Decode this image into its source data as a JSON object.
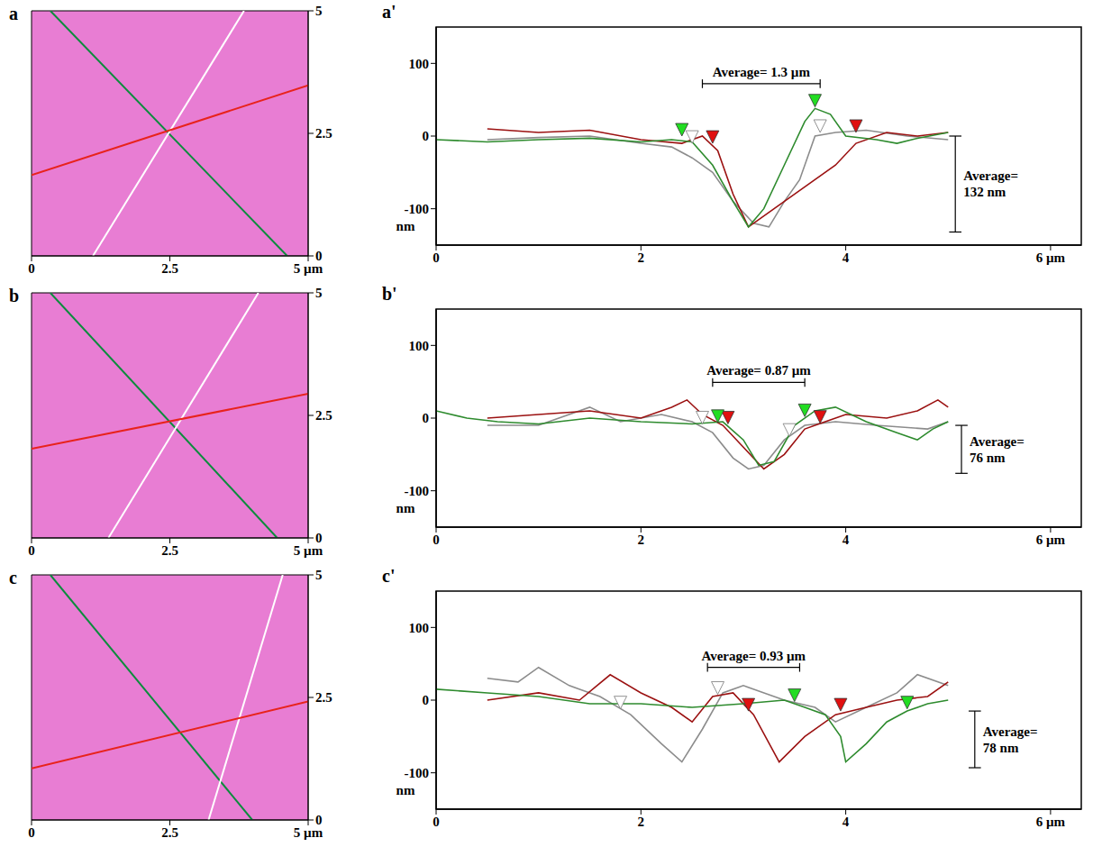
{
  "chart_data": [
    {
      "type": "afm_image",
      "panel": "a",
      "xlim": [
        0,
        5
      ],
      "ylim": [
        0,
        5
      ],
      "xticks": [
        0,
        2.5,
        {
          "value": 5,
          "label": "5 µm"
        }
      ],
      "yticks": [
        0,
        2.5,
        5
      ],
      "series": [
        {
          "color": "#0b8c3c",
          "x": [
            0.34,
            4.62
          ],
          "values": [
            5,
            0
          ]
        },
        {
          "color": "#ffffff",
          "x": [
            1.11,
            3.84
          ],
          "values": [
            0,
            5
          ]
        },
        {
          "color": "#e8231c",
          "x": [
            0,
            5
          ],
          "values": [
            1.65,
            3.48
          ]
        }
      ]
    },
    {
      "type": "line",
      "panel": "a'",
      "xlim": [
        0,
        6.3
      ],
      "ylim": [
        -150,
        150
      ],
      "xticks": [
        0,
        2,
        4,
        {
          "value": 6,
          "label": "6  µm"
        }
      ],
      "yticks": [
        -100,
        0,
        100
      ],
      "y_label": "nm",
      "annotations": [
        {
          "text": "Average= 1.3 µm",
          "x": [
            2.6,
            3.75
          ],
          "y": 72
        },
        {
          "text": "Average= 132 nm",
          "x": 5.07,
          "y": [
            0,
            -132
          ]
        }
      ],
      "series": [
        {
          "color": "#8c8c8c",
          "x": [
            0.5,
            1,
            1.5,
            2,
            2.3,
            2.5,
            2.7,
            2.9,
            3.1,
            3.25,
            3.4,
            3.55,
            3.7,
            3.9,
            4.2,
            4.6,
            5
          ],
          "values": [
            -5,
            -2,
            0,
            -10,
            -15,
            -30,
            -50,
            -90,
            -120,
            -125,
            -90,
            -60,
            0,
            5,
            8,
            0,
            -5
          ],
          "cursors": {
            "x": [
              2.5,
              3.75
            ],
            "y": [
              -10,
              5
            ]
          }
        },
        {
          "color": "#9b1111",
          "x": [
            0.5,
            1,
            1.5,
            2,
            2.4,
            2.6,
            2.75,
            2.9,
            3.05,
            3.3,
            3.6,
            3.9,
            4.1,
            4.4,
            4.7,
            5
          ],
          "values": [
            10,
            5,
            8,
            -5,
            -10,
            0,
            -20,
            -80,
            -125,
            -100,
            -70,
            -40,
            -10,
            5,
            0,
            5
          ],
          "cursors": {
            "x": [
              2.7,
              4.1
            ],
            "y": [
              -10,
              5
            ]
          }
        },
        {
          "color": "#2e8b2e",
          "x": [
            0,
            0.5,
            1,
            1.5,
            2,
            2.3,
            2.5,
            2.7,
            2.9,
            3.05,
            3.2,
            3.4,
            3.6,
            3.7,
            3.85,
            4,
            4.3,
            4.5,
            4.7,
            5
          ],
          "values": [
            -5,
            -8,
            -5,
            -3,
            -8,
            -5,
            -8,
            -40,
            -90,
            -125,
            -100,
            -40,
            20,
            38,
            30,
            0,
            -5,
            -10,
            -3,
            5
          ],
          "cursors": {
            "x": [
              2.4,
              3.7
            ],
            "y": [
              0,
              40
            ]
          }
        }
      ]
    },
    {
      "type": "afm_image",
      "panel": "b",
      "xlim": [
        0,
        5
      ],
      "ylim": [
        0,
        5
      ],
      "xticks": [
        0,
        2.5,
        {
          "value": 5,
          "label": "5 µm"
        }
      ],
      "yticks": [
        0,
        2.5,
        5
      ],
      "series": [
        {
          "color": "#0b8c3c",
          "x": [
            0.34,
            4.44
          ],
          "values": [
            5,
            0
          ]
        },
        {
          "color": "#ffffff",
          "x": [
            1.39,
            4.1
          ],
          "values": [
            0,
            5
          ]
        },
        {
          "color": "#e8231c",
          "x": [
            0,
            5
          ],
          "values": [
            1.82,
            2.94
          ]
        }
      ]
    },
    {
      "type": "line",
      "panel": "b'",
      "xlim": [
        0,
        6.3
      ],
      "ylim": [
        -150,
        150
      ],
      "xticks": [
        0,
        2,
        4,
        {
          "value": 6,
          "label": "6  µm"
        }
      ],
      "yticks": [
        -100,
        0,
        100
      ],
      "y_label": "nm",
      "annotations": [
        {
          "text": "Average= 0.87 µm",
          "x": [
            2.7,
            3.6
          ],
          "y": 49
        },
        {
          "text": "Average= 76 nm",
          "x": 5.13,
          "y": [
            -10,
            -76
          ]
        }
      ],
      "series": [
        {
          "color": "#8c8c8c",
          "x": [
            0.5,
            1,
            1.5,
            1.8,
            2.2,
            2.5,
            2.7,
            2.9,
            3.05,
            3.2,
            3.4,
            3.6,
            3.9,
            4.3,
            4.8,
            5
          ],
          "values": [
            -10,
            -10,
            15,
            -5,
            5,
            -5,
            -20,
            -55,
            -70,
            -65,
            -30,
            -10,
            -5,
            -10,
            -15,
            -5
          ],
          "cursors": {
            "x": [
              2.6,
              3.45
            ],
            "y": [
              -8,
              -25
            ]
          }
        },
        {
          "color": "#9b1111",
          "x": [
            0.5,
            1,
            1.5,
            2,
            2.3,
            2.45,
            2.6,
            2.8,
            3,
            3.2,
            3.4,
            3.6,
            3.8,
            4,
            4.4,
            4.7,
            4.9,
            5
          ],
          "values": [
            0,
            5,
            10,
            0,
            15,
            25,
            5,
            -10,
            -40,
            -70,
            -50,
            -15,
            -5,
            5,
            0,
            10,
            25,
            15
          ],
          "cursors": {
            "x": [
              2.85,
              3.75
            ],
            "y": [
              -8,
              -7
            ]
          }
        },
        {
          "color": "#2e8b2e",
          "x": [
            0,
            0.3,
            0.6,
            1,
            1.5,
            2,
            2.5,
            2.8,
            3,
            3.15,
            3.3,
            3.5,
            3.7,
            3.9,
            4.2,
            4.5,
            4.7,
            4.85,
            5
          ],
          "values": [
            10,
            0,
            -5,
            -8,
            0,
            -5,
            -8,
            -5,
            -30,
            -65,
            -60,
            -10,
            10,
            15,
            -5,
            -20,
            -30,
            -15,
            -5
          ],
          "cursors": {
            "x": [
              2.75,
              3.6
            ],
            "y": [
              -6,
              2
            ]
          }
        }
      ]
    },
    {
      "type": "afm_image",
      "panel": "c",
      "xlim": [
        0,
        5
      ],
      "ylim": [
        0,
        5
      ],
      "xticks": [
        0,
        2.5,
        {
          "value": 5,
          "label": "5 µm"
        }
      ],
      "yticks": [
        0,
        2.5,
        5
      ],
      "series": [
        {
          "color": "#0b8c3c",
          "x": [
            0.34,
            3.99
          ],
          "values": [
            5,
            0
          ]
        },
        {
          "color": "#ffffff",
          "x": [
            3.2,
            4.54
          ],
          "values": [
            0,
            5
          ]
        },
        {
          "color": "#e8231c",
          "x": [
            0,
            5
          ],
          "values": [
            1.05,
            2.42
          ]
        }
      ]
    },
    {
      "type": "line",
      "panel": "c'",
      "xlim": [
        0,
        6.3
      ],
      "ylim": [
        -150,
        150
      ],
      "xticks": [
        0,
        2,
        4,
        {
          "value": 6,
          "label": "6  µm"
        }
      ],
      "yticks": [
        -100,
        0,
        100
      ],
      "y_label": "nm",
      "annotations": [
        {
          "text": "Average= 0.93 µm",
          "x": [
            2.65,
            3.55
          ],
          "y": 45
        },
        {
          "text": "Average= 78 nm",
          "x": 5.26,
          "y": [
            -15,
            -93
          ]
        }
      ],
      "series": [
        {
          "color": "#8c8c8c",
          "x": [
            0.5,
            0.8,
            1,
            1.3,
            1.6,
            1.9,
            2.2,
            2.4,
            2.6,
            2.8,
            3,
            3.4,
            3.7,
            3.9,
            4.2,
            4.5,
            4.7,
            5
          ],
          "values": [
            30,
            25,
            45,
            20,
            5,
            -20,
            -60,
            -85,
            -40,
            10,
            20,
            0,
            -10,
            -30,
            -10,
            10,
            35,
            20
          ],
          "cursors": {
            "x": [
              1.8,
              2.75
            ],
            "y": [
              -12,
              8
            ]
          }
        },
        {
          "color": "#9b1111",
          "x": [
            0.5,
            1,
            1.4,
            1.7,
            2,
            2.3,
            2.5,
            2.7,
            2.9,
            3.1,
            3.35,
            3.6,
            3.9,
            4.2,
            4.5,
            4.8,
            5
          ],
          "values": [
            0,
            10,
            0,
            35,
            10,
            -10,
            -30,
            5,
            10,
            -20,
            -85,
            -50,
            -20,
            -10,
            0,
            5,
            25
          ],
          "cursors": {
            "x": [
              3.05,
              3.95
            ],
            "y": [
              -15,
              -15
            ]
          }
        },
        {
          "color": "#2e8b2e",
          "x": [
            0,
            0.5,
            1,
            1.5,
            2,
            2.5,
            3,
            3.4,
            3.6,
            3.8,
            3.95,
            4,
            4.2,
            4.4,
            4.6,
            4.8,
            5
          ],
          "values": [
            15,
            10,
            5,
            -5,
            -5,
            -10,
            -5,
            0,
            -10,
            -20,
            -50,
            -85,
            -60,
            -30,
            -15,
            -5,
            0
          ],
          "cursors": {
            "x": [
              3.5,
              4.6
            ],
            "y": [
              -2,
              -12
            ]
          }
        }
      ]
    }
  ]
}
